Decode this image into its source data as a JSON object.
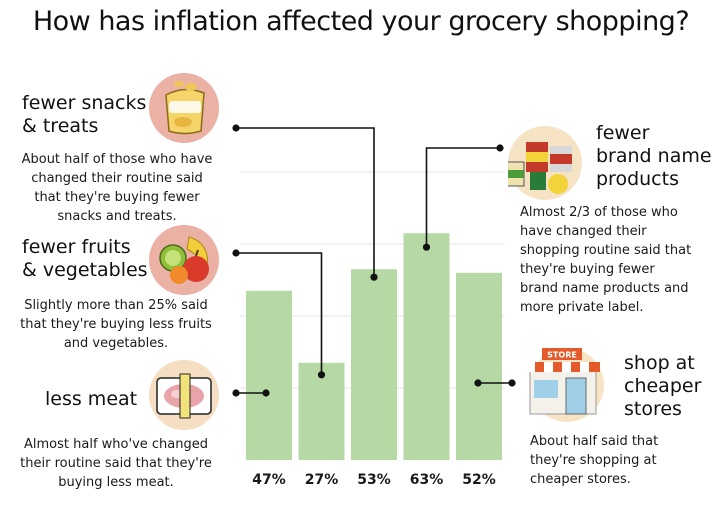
{
  "title": "How has inflation affected your grocery shopping?",
  "colors": {
    "bar": "#b6d8a4",
    "grid": "#e6e6e6",
    "connector": "#111111"
  },
  "chart_data": {
    "type": "bar",
    "categories": [
      "fewer snacks & treats",
      "fewer fruits & vegetables",
      "less meat",
      "fewer brand name products",
      "shop at cheaper stores"
    ],
    "values": [
      47,
      27,
      53,
      63,
      52
    ],
    "value_labels": [
      "47%",
      "27%",
      "53%",
      "63%",
      "52%"
    ],
    "ylim": [
      0,
      100
    ],
    "grid": true,
    "title": "How has inflation affected your grocery shopping?"
  },
  "callouts": {
    "snacks": {
      "icon": "chips-bag-icon",
      "heading1": "fewer snacks",
      "heading2": "& treats",
      "text1": "About half of those who have",
      "text2": "changed their routine said",
      "text3": "that they're buying fewer",
      "text4": "snacks and treats."
    },
    "fruits": {
      "icon": "fruits-icon",
      "heading1": "fewer fruits",
      "heading2": "& vegetables",
      "text1": "Slightly more than 25% said",
      "text2": "that they're buying less fruits",
      "text3": "and vegetables."
    },
    "meat": {
      "icon": "meat-package-icon",
      "heading1": "less meat",
      "text1": "Almost half who've changed",
      "text2": "their routine said that they're",
      "text3": "buying less meat."
    },
    "brand": {
      "icon": "canned-goods-icon",
      "heading1": "fewer",
      "heading2": "brand name",
      "heading3": "products",
      "text1": "Almost 2/3 of those who",
      "text2": "have changed their",
      "text3": "shopping routine said that",
      "text4": "they're buying fewer",
      "text5": "brand name products and",
      "text6": "more private label."
    },
    "stores": {
      "icon": "store-icon",
      "store_sign": "STORE",
      "heading1": "shop at",
      "heading2": "cheaper",
      "heading3": "stores",
      "text1": "About half said that",
      "text2": "they're shopping at",
      "text3": "cheaper stores."
    }
  }
}
